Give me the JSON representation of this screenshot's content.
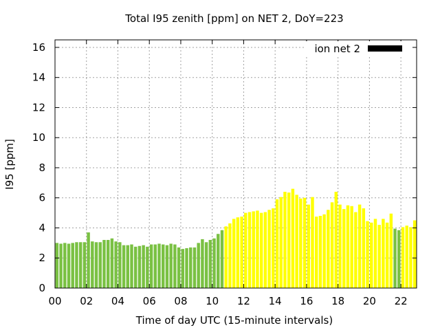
{
  "chart_data": {
    "type": "bar",
    "title": "Total I95 zenith [ppm] on NET 2, DoY=223",
    "xlabel": "Time of day UTC (15-minute intervals)",
    "ylabel": "I95 [ppm]",
    "xlim": [
      0,
      23
    ],
    "ylim": [
      0,
      16.5
    ],
    "x_ticks": [
      0,
      2,
      4,
      6,
      8,
      10,
      12,
      14,
      16,
      18,
      20,
      22
    ],
    "x_tick_labels": [
      "00",
      "02",
      "04",
      "06",
      "08",
      "10",
      "12",
      "14",
      "16",
      "18",
      "20",
      "22"
    ],
    "y_ticks": [
      0,
      2,
      4,
      6,
      8,
      10,
      12,
      14,
      16
    ],
    "y_tick_labels": [
      "0",
      "2",
      "4",
      "6",
      "8",
      "10",
      "12",
      "14",
      "16"
    ],
    "grid": true,
    "legend": {
      "position": "top-right",
      "label": "ion net 2",
      "color": "#000000"
    },
    "colors": {
      "low": "#7ac143",
      "high": "#ffff00"
    },
    "interval_hours": 0.25,
    "bars": [
      {
        "x": 0.0,
        "y": 3.0,
        "c": "low"
      },
      {
        "x": 0.25,
        "y": 2.95,
        "c": "low"
      },
      {
        "x": 0.5,
        "y": 3.0,
        "c": "low"
      },
      {
        "x": 0.75,
        "y": 2.95,
        "c": "low"
      },
      {
        "x": 1.0,
        "y": 3.0,
        "c": "low"
      },
      {
        "x": 1.25,
        "y": 3.05,
        "c": "low"
      },
      {
        "x": 1.5,
        "y": 3.05,
        "c": "low"
      },
      {
        "x": 1.75,
        "y": 3.05,
        "c": "low"
      },
      {
        "x": 2.0,
        "y": 3.7,
        "c": "low"
      },
      {
        "x": 2.25,
        "y": 3.1,
        "c": "low"
      },
      {
        "x": 2.5,
        "y": 3.05,
        "c": "low"
      },
      {
        "x": 2.75,
        "y": 3.05,
        "c": "low"
      },
      {
        "x": 3.0,
        "y": 3.2,
        "c": "low"
      },
      {
        "x": 3.25,
        "y": 3.2,
        "c": "low"
      },
      {
        "x": 3.5,
        "y": 3.3,
        "c": "low"
      },
      {
        "x": 3.75,
        "y": 3.1,
        "c": "low"
      },
      {
        "x": 4.0,
        "y": 3.05,
        "c": "low"
      },
      {
        "x": 4.25,
        "y": 2.85,
        "c": "low"
      },
      {
        "x": 4.5,
        "y": 2.85,
        "c": "low"
      },
      {
        "x": 4.75,
        "y": 2.9,
        "c": "low"
      },
      {
        "x": 5.0,
        "y": 2.75,
        "c": "low"
      },
      {
        "x": 5.25,
        "y": 2.8,
        "c": "low"
      },
      {
        "x": 5.5,
        "y": 2.85,
        "c": "low"
      },
      {
        "x": 5.75,
        "y": 2.75,
        "c": "low"
      },
      {
        "x": 6.0,
        "y": 2.9,
        "c": "low"
      },
      {
        "x": 6.25,
        "y": 2.9,
        "c": "low"
      },
      {
        "x": 6.5,
        "y": 2.95,
        "c": "low"
      },
      {
        "x": 6.75,
        "y": 2.9,
        "c": "low"
      },
      {
        "x": 7.0,
        "y": 2.85,
        "c": "low"
      },
      {
        "x": 7.25,
        "y": 2.95,
        "c": "low"
      },
      {
        "x": 7.5,
        "y": 2.9,
        "c": "low"
      },
      {
        "x": 7.75,
        "y": 2.7,
        "c": "low"
      },
      {
        "x": 8.0,
        "y": 2.6,
        "c": "low"
      },
      {
        "x": 8.25,
        "y": 2.65,
        "c": "low"
      },
      {
        "x": 8.5,
        "y": 2.7,
        "c": "low"
      },
      {
        "x": 8.75,
        "y": 2.7,
        "c": "low"
      },
      {
        "x": 9.0,
        "y": 3.0,
        "c": "low"
      },
      {
        "x": 9.25,
        "y": 3.25,
        "c": "low"
      },
      {
        "x": 9.5,
        "y": 3.05,
        "c": "low"
      },
      {
        "x": 9.75,
        "y": 3.2,
        "c": "low"
      },
      {
        "x": 10.0,
        "y": 3.3,
        "c": "low"
      },
      {
        "x": 10.25,
        "y": 3.6,
        "c": "low"
      },
      {
        "x": 10.5,
        "y": 3.85,
        "c": "low"
      },
      {
        "x": 10.75,
        "y": 4.1,
        "c": "high"
      },
      {
        "x": 11.0,
        "y": 4.3,
        "c": "high"
      },
      {
        "x": 11.25,
        "y": 4.6,
        "c": "high"
      },
      {
        "x": 11.5,
        "y": 4.7,
        "c": "high"
      },
      {
        "x": 11.75,
        "y": 4.75,
        "c": "high"
      },
      {
        "x": 12.0,
        "y": 5.0,
        "c": "high"
      },
      {
        "x": 12.25,
        "y": 5.05,
        "c": "high"
      },
      {
        "x": 12.5,
        "y": 5.1,
        "c": "high"
      },
      {
        "x": 12.75,
        "y": 5.15,
        "c": "high"
      },
      {
        "x": 13.0,
        "y": 5.0,
        "c": "high"
      },
      {
        "x": 13.25,
        "y": 5.05,
        "c": "high"
      },
      {
        "x": 13.5,
        "y": 5.2,
        "c": "high"
      },
      {
        "x": 13.75,
        "y": 5.3,
        "c": "high"
      },
      {
        "x": 14.0,
        "y": 5.9,
        "c": "high"
      },
      {
        "x": 14.25,
        "y": 6.05,
        "c": "high"
      },
      {
        "x": 14.5,
        "y": 6.4,
        "c": "high"
      },
      {
        "x": 14.75,
        "y": 6.35,
        "c": "high"
      },
      {
        "x": 15.0,
        "y": 6.6,
        "c": "high"
      },
      {
        "x": 15.25,
        "y": 6.2,
        "c": "high"
      },
      {
        "x": 15.5,
        "y": 5.95,
        "c": "high"
      },
      {
        "x": 15.75,
        "y": 6.0,
        "c": "high"
      },
      {
        "x": 16.0,
        "y": 5.55,
        "c": "high"
      },
      {
        "x": 16.25,
        "y": 6.05,
        "c": "high"
      },
      {
        "x": 16.5,
        "y": 4.75,
        "c": "high"
      },
      {
        "x": 16.75,
        "y": 4.8,
        "c": "high"
      },
      {
        "x": 17.0,
        "y": 4.9,
        "c": "high"
      },
      {
        "x": 17.25,
        "y": 5.2,
        "c": "high"
      },
      {
        "x": 17.5,
        "y": 5.7,
        "c": "high"
      },
      {
        "x": 17.75,
        "y": 6.4,
        "c": "high"
      },
      {
        "x": 18.0,
        "y": 5.55,
        "c": "high"
      },
      {
        "x": 18.25,
        "y": 5.25,
        "c": "high"
      },
      {
        "x": 18.5,
        "y": 5.5,
        "c": "high"
      },
      {
        "x": 18.75,
        "y": 5.45,
        "c": "high"
      },
      {
        "x": 19.0,
        "y": 5.05,
        "c": "high"
      },
      {
        "x": 19.25,
        "y": 5.55,
        "c": "high"
      },
      {
        "x": 19.5,
        "y": 5.3,
        "c": "high"
      },
      {
        "x": 19.75,
        "y": 4.45,
        "c": "high"
      },
      {
        "x": 20.0,
        "y": 4.35,
        "c": "high"
      },
      {
        "x": 20.25,
        "y": 4.6,
        "c": "high"
      },
      {
        "x": 20.5,
        "y": 4.2,
        "c": "high"
      },
      {
        "x": 20.75,
        "y": 4.6,
        "c": "high"
      },
      {
        "x": 21.0,
        "y": 4.35,
        "c": "high"
      },
      {
        "x": 21.25,
        "y": 4.95,
        "c": "high"
      },
      {
        "x": 21.5,
        "y": 3.95,
        "c": "low"
      },
      {
        "x": 21.75,
        "y": 3.85,
        "c": "low"
      },
      {
        "x": 22.0,
        "y": 4.05,
        "c": "high"
      },
      {
        "x": 22.25,
        "y": 4.15,
        "c": "high"
      },
      {
        "x": 22.5,
        "y": 4.05,
        "c": "high"
      },
      {
        "x": 22.75,
        "y": 4.5,
        "c": "high"
      }
    ]
  }
}
